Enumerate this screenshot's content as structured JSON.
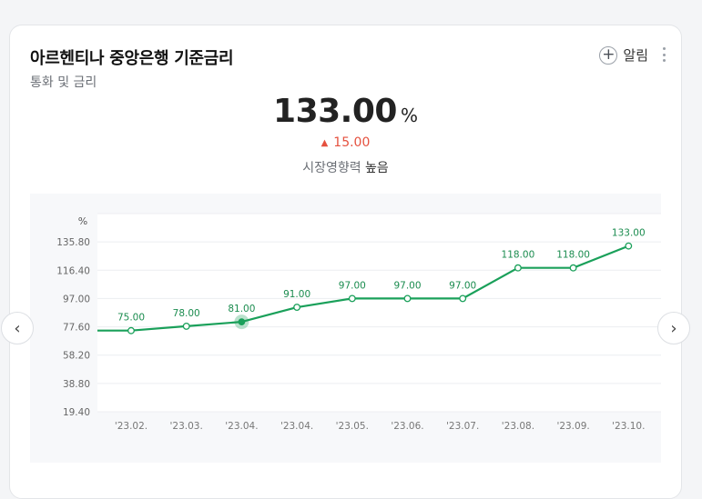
{
  "header": {
    "title": "아르헨티나 중앙은행 기준금리",
    "subtitle": "통화 및 금리",
    "alarm_label": "알림"
  },
  "summary": {
    "value": "133.00",
    "unit": "%",
    "change": "15.00",
    "impact_label": "시장영향력",
    "impact_value": "높음"
  },
  "colors": {
    "line": "#1aa05a",
    "up": "#e5513f"
  },
  "chart_data": {
    "type": "line",
    "y_unit_label": "%",
    "categories": [
      "'23.02.",
      "'23.03.",
      "'23.04.",
      "'23.04.",
      "'23.05.",
      "'23.06.",
      "'23.07.",
      "'23.08.",
      "'23.09.",
      "'23.10."
    ],
    "values": [
      75.0,
      78.0,
      81.0,
      91.0,
      97.0,
      97.0,
      97.0,
      118.0,
      118.0,
      133.0
    ],
    "point_labels": [
      "75.00",
      "78.00",
      "81.00",
      "91.00",
      "97.00",
      "97.00",
      "97.00",
      "118.00",
      "118.00",
      "133.00"
    ],
    "y_ticks": [
      19.4,
      38.8,
      58.2,
      77.6,
      97.0,
      116.4,
      135.8
    ],
    "y_tick_labels": [
      "19.40",
      "38.80",
      "58.20",
      "77.60",
      "97.00",
      "116.40",
      "135.80"
    ],
    "ylim": [
      19.4,
      155.2
    ],
    "highlight_index": 2,
    "grid": true
  }
}
